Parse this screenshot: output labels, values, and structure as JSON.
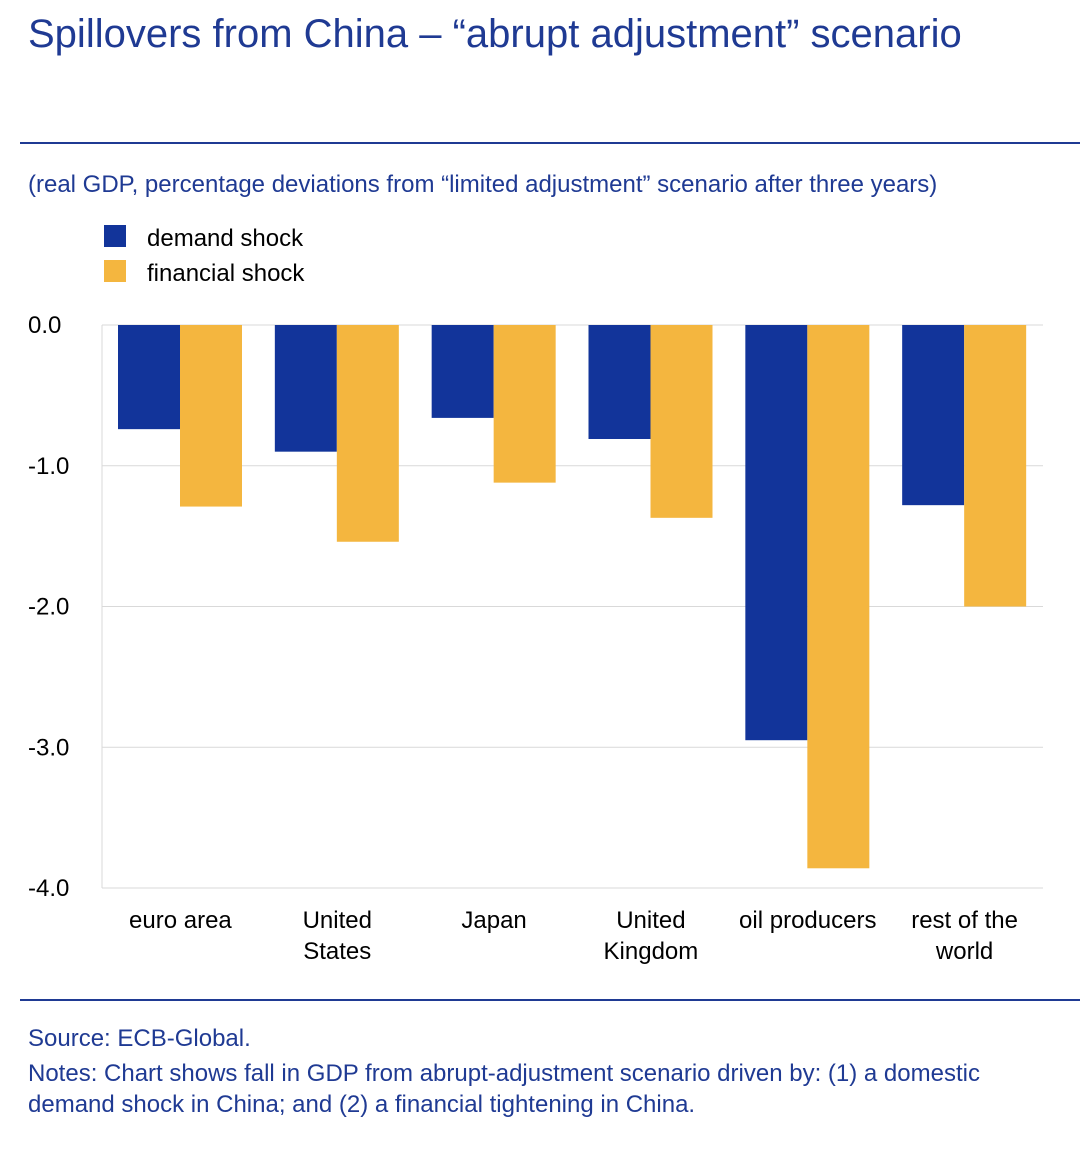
{
  "title": "Spillovers from China – “abrupt adjustment” scenario",
  "subtitle": "(real GDP, percentage deviations from “limited adjustment” scenario after three years)",
  "source": "Source: ECB-Global.",
  "notes": "Notes: Chart shows fall in GDP from abrupt-adjustment scenario driven by: (1) a domestic demand shock in China; and (2) a financial tightening in China.",
  "colors": {
    "demand": "#12349a",
    "financial": "#f4b63f",
    "text": "#1f3a93",
    "grid": "#d9d9d9"
  },
  "chart_data": {
    "type": "bar",
    "title": "Spillovers from China – “abrupt adjustment” scenario",
    "ylabel": "real GDP, percentage deviations from “limited adjustment” scenario after three years",
    "ylim": [
      -4.0,
      0.0
    ],
    "yticks": [
      "0.0",
      "-1.0",
      "-2.0",
      "-3.0",
      "-4.0"
    ],
    "grid": true,
    "legend_position": "top-left",
    "categories": [
      [
        "euro area"
      ],
      [
        "United",
        "States"
      ],
      [
        "Japan"
      ],
      [
        "United",
        "Kingdom"
      ],
      [
        "oil producers"
      ],
      [
        "rest of the",
        "world"
      ]
    ],
    "series": [
      {
        "name": "demand shock",
        "values": [
          -0.74,
          -0.9,
          -0.66,
          -0.81,
          -2.95,
          -1.28
        ]
      },
      {
        "name": "financial shock",
        "values": [
          -1.29,
          -1.54,
          -1.12,
          -1.37,
          -3.86,
          -2.0
        ]
      }
    ]
  }
}
